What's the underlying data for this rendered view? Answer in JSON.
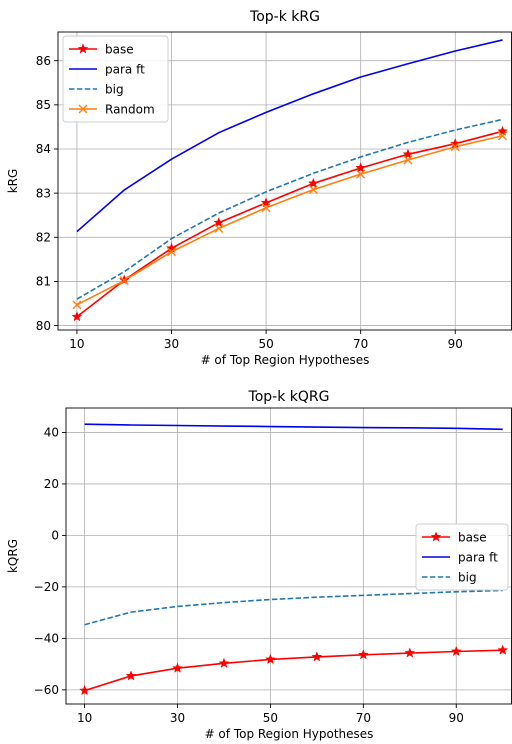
{
  "chart_data": [
    {
      "type": "line",
      "title": "Top-k kRG",
      "xlabel": "# of Top Region Hypotheses",
      "ylabel": "kRG",
      "x": [
        10,
        20,
        30,
        40,
        50,
        60,
        70,
        80,
        90,
        100
      ],
      "xticks": [
        10,
        30,
        50,
        70,
        90
      ],
      "yticks": [
        80,
        81,
        82,
        83,
        84,
        85,
        86
      ],
      "xlim": [
        6,
        102
      ],
      "ylim": [
        79.9,
        86.65
      ],
      "grid": true,
      "legend_position": "upper-left",
      "series": [
        {
          "name": "base",
          "color": "#ff0000",
          "style": "solid",
          "marker": "star",
          "values": [
            80.2,
            81.03,
            81.75,
            82.33,
            82.78,
            83.22,
            83.57,
            83.88,
            84.12,
            84.4
          ]
        },
        {
          "name": "para ft",
          "color": "#0000ee",
          "style": "solid",
          "marker": "none",
          "values": [
            82.13,
            83.07,
            83.77,
            84.37,
            84.83,
            85.25,
            85.63,
            85.93,
            86.22,
            86.47
          ]
        },
        {
          "name": "big",
          "color": "#1f77b4",
          "style": "dashed",
          "marker": "none",
          "values": [
            80.6,
            81.22,
            81.97,
            82.55,
            83.03,
            83.45,
            83.82,
            84.15,
            84.43,
            84.67
          ]
        },
        {
          "name": "Random",
          "color": "#ff7f0e",
          "style": "solid",
          "marker": "x",
          "values": [
            80.47,
            81.02,
            81.67,
            82.2,
            82.67,
            83.08,
            83.43,
            83.75,
            84.05,
            84.3
          ]
        }
      ]
    },
    {
      "type": "line",
      "title": "Top-k kQRG",
      "xlabel": "# of Top Region Hypotheses",
      "ylabel": "kQRG",
      "x": [
        10,
        20,
        30,
        40,
        50,
        60,
        70,
        80,
        90,
        100
      ],
      "xticks": [
        10,
        30,
        50,
        70,
        90
      ],
      "yticks": [
        -60,
        -40,
        -20,
        0,
        20,
        40
      ],
      "xlim": [
        6,
        102
      ],
      "ylim": [
        -65.5,
        49.5
      ],
      "grid": true,
      "legend_position": "center-right",
      "series": [
        {
          "name": "base",
          "color": "#ff0000",
          "style": "solid",
          "marker": "star",
          "values": [
            -60.3,
            -54.6,
            -51.6,
            -49.7,
            -48.2,
            -47.2,
            -46.4,
            -45.7,
            -45.1,
            -44.6
          ]
        },
        {
          "name": "para ft",
          "color": "#0000ee",
          "style": "solid",
          "marker": "none",
          "values": [
            43.2,
            42.9,
            42.7,
            42.5,
            42.3,
            42.1,
            41.9,
            41.8,
            41.6,
            41.2
          ]
        },
        {
          "name": "big",
          "color": "#1f77b4",
          "style": "dashed",
          "marker": "none",
          "values": [
            -34.7,
            -29.8,
            -27.6,
            -26.1,
            -24.9,
            -24.0,
            -23.3,
            -22.6,
            -21.9,
            -21.4
          ]
        }
      ]
    }
  ]
}
